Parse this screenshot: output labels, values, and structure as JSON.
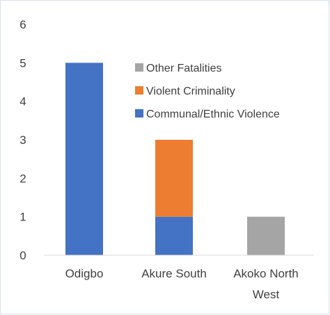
{
  "chart_data": {
    "type": "bar",
    "stacked": true,
    "categories": [
      [
        "Odigbo"
      ],
      [
        "Akure South"
      ],
      [
        "Akoko North",
        "West"
      ]
    ],
    "series": [
      {
        "name": "Communal/Ethnic Violence",
        "color": "#4472c4",
        "values": [
          5,
          1,
          0
        ]
      },
      {
        "name": "Violent Criminality",
        "color": "#ed7d31",
        "values": [
          0,
          2,
          0
        ]
      },
      {
        "name": "Other Fatalities",
        "color": "#a5a5a5",
        "values": [
          0,
          0,
          1
        ]
      }
    ],
    "yticks": [
      "0",
      "1",
      "2",
      "3",
      "4",
      "5",
      "6"
    ],
    "ylim": [
      0,
      6
    ],
    "grid": false,
    "legend": {
      "position": "top-right",
      "order": [
        "Other Fatalities",
        "Violent Criminality",
        "Communal/Ethnic Violence"
      ]
    },
    "axis_color": "#d9d9d9"
  }
}
